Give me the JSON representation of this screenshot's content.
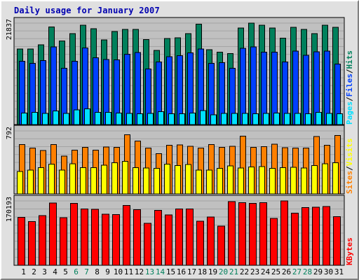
{
  "window": {
    "title": "Daily usage for January 2007"
  },
  "colors": {
    "hits": "#00805c",
    "files": "#0040ff",
    "pages": "#00e0ff",
    "visits": "#ffff00",
    "sites": "#ff8000",
    "kbytes": "#ff0000",
    "sep": "#000000",
    "weekend_day": "#00805c",
    "weekday": "#000000"
  },
  "chart_data": [
    {
      "type": "bar",
      "panel": "hits-files-pages",
      "max_label": "21837",
      "side_labels": [
        "Pages",
        "/",
        "Files",
        "/",
        "Hits"
      ],
      "side_label_colors": [
        "pages",
        "sep",
        "files",
        "sep",
        "hits"
      ],
      "ylim": [
        0,
        21837
      ],
      "categories": [
        "1",
        "2",
        "3",
        "4",
        "5",
        "6",
        "7",
        "8",
        "9",
        "10",
        "11",
        "12",
        "13",
        "14",
        "15",
        "16",
        "17",
        "18",
        "19",
        "20",
        "21",
        "22",
        "23",
        "24",
        "25",
        "26",
        "27",
        "28",
        "29",
        "30",
        "31"
      ],
      "series": [
        {
          "name": "Hits",
          "color": "hits",
          "values": [
            16300,
            16300,
            17200,
            21000,
            18000,
            19600,
            21400,
            20600,
            18200,
            20000,
            20500,
            20500,
            18300,
            16000,
            18500,
            18700,
            19600,
            21600,
            16100,
            15600,
            15300,
            20800,
            21800,
            21400,
            20800,
            18600,
            20900,
            20500,
            19600,
            21400,
            20900
          ]
        },
        {
          "name": "Files",
          "color": "files",
          "values": [
            13600,
            13200,
            13800,
            16700,
            12100,
            13600,
            16500,
            14400,
            14000,
            13900,
            15100,
            15500,
            12000,
            13500,
            14600,
            14800,
            15400,
            16300,
            13200,
            13300,
            12100,
            16400,
            16700,
            15600,
            15600,
            13500,
            15800,
            14900,
            15700,
            15800,
            13000
          ]
        },
        {
          "name": "Pages",
          "color": "pages",
          "values": [
            2500,
            2600,
            2400,
            2900,
            2400,
            3200,
            3400,
            2600,
            2600,
            2500,
            2400,
            2300,
            2400,
            2800,
            2300,
            2300,
            2500,
            3000,
            2100,
            2400,
            2400,
            2400,
            2300,
            2400,
            2500,
            2400,
            2400,
            2300,
            2600,
            2400,
            2300
          ]
        }
      ]
    },
    {
      "type": "bar",
      "panel": "visits-sites",
      "max_label": "792",
      "side_labels": [
        "Sites",
        "/",
        "Visits"
      ],
      "side_label_colors": [
        "sites",
        "sep",
        "visits"
      ],
      "ylim": [
        0,
        792
      ],
      "categories": [
        "1",
        "2",
        "3",
        "4",
        "5",
        "6",
        "7",
        "8",
        "9",
        "10",
        "11",
        "12",
        "13",
        "14",
        "15",
        "16",
        "17",
        "18",
        "19",
        "20",
        "21",
        "22",
        "23",
        "24",
        "25",
        "26",
        "27",
        "28",
        "29",
        "30",
        "31"
      ],
      "series": [
        {
          "name": "Sites",
          "color": "sites",
          "values": [
            620,
            575,
            545,
            620,
            475,
            550,
            585,
            550,
            590,
            585,
            745,
            665,
            575,
            505,
            610,
            615,
            600,
            575,
            620,
            585,
            600,
            725,
            585,
            595,
            625,
            580,
            575,
            575,
            720,
            610,
            735
          ]
        },
        {
          "name": "Visits",
          "color": "visits",
          "values": [
            280,
            300,
            330,
            375,
            300,
            380,
            330,
            330,
            360,
            390,
            410,
            330,
            325,
            320,
            375,
            355,
            370,
            300,
            300,
            320,
            350,
            325,
            340,
            345,
            320,
            330,
            335,
            325,
            355,
            380,
            390
          ]
        }
      ]
    },
    {
      "type": "bar",
      "panel": "kbytes",
      "max_label": "170193",
      "side_labels": [
        "KBytes"
      ],
      "side_label_colors": [
        "kbytes"
      ],
      "ylim": [
        0,
        170193
      ],
      "categories": [
        "1",
        "2",
        "3",
        "4",
        "5",
        "6",
        "7",
        "8",
        "9",
        "10",
        "11",
        "12",
        "13",
        "14",
        "15",
        "16",
        "17",
        "18",
        "19",
        "20",
        "21",
        "22",
        "23",
        "24",
        "25",
        "26",
        "27",
        "28",
        "29",
        "30",
        "31"
      ],
      "series": [
        {
          "name": "KBytes",
          "color": "kbytes",
          "values": [
            127000,
            116000,
            131000,
            165000,
            126000,
            164000,
            149000,
            148000,
            135000,
            134000,
            158000,
            147000,
            111000,
            145000,
            133000,
            149000,
            149000,
            117000,
            128000,
            104000,
            168000,
            166000,
            164000,
            166000,
            124000,
            170193,
            138000,
            153000,
            154000,
            155000,
            129000
          ]
        }
      ]
    }
  ],
  "x_axis": {
    "labels": [
      "1",
      "2",
      "3",
      "4",
      "5",
      "6",
      "7",
      "8",
      "9",
      "10",
      "11",
      "12",
      "13",
      "14",
      "15",
      "16",
      "17",
      "18",
      "19",
      "20",
      "21",
      "22",
      "23",
      "24",
      "25",
      "26",
      "27",
      "28",
      "29",
      "30",
      "31"
    ],
    "weekend_days": [
      "6",
      "7",
      "13",
      "14",
      "20",
      "21",
      "27",
      "28"
    ]
  }
}
